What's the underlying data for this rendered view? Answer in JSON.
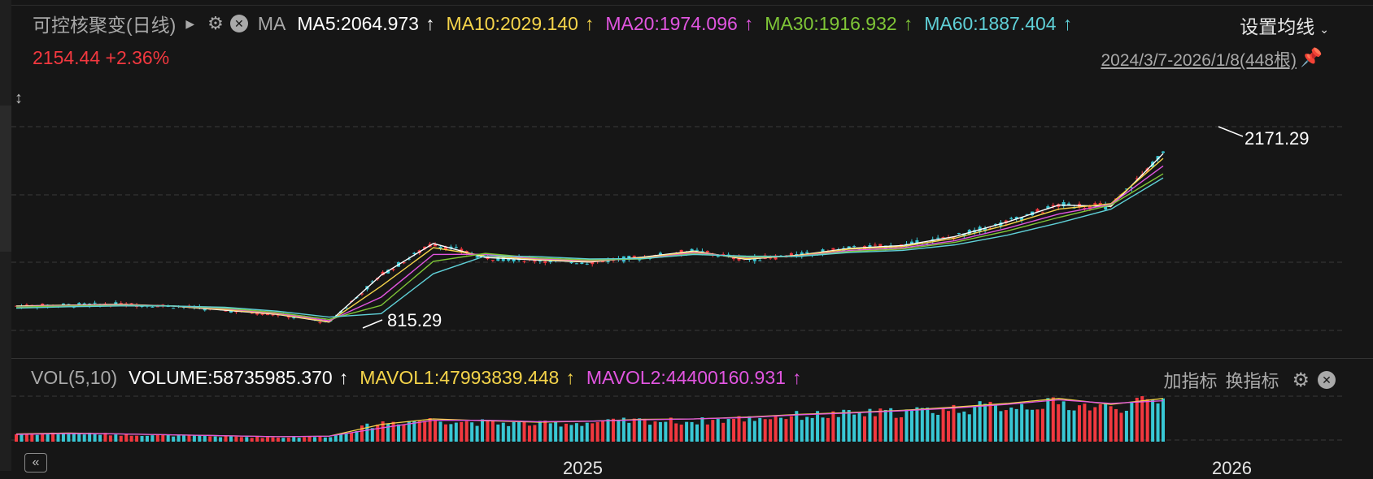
{
  "header": {
    "title": "可控核聚变(日线)",
    "ma_label": "MA",
    "ma_items": [
      {
        "text": "MA5:2064.973",
        "color": "#ffffff"
      },
      {
        "text": "MA10:2029.140",
        "color": "#f5d44a"
      },
      {
        "text": "MA20:1974.096",
        "color": "#e155e0"
      },
      {
        "text": "MA30:1916.932",
        "color": "#7fc637"
      },
      {
        "text": "MA60:1887.404",
        "color": "#5fd0d7"
      }
    ],
    "arrow": "↑",
    "settings_label": "设置均线",
    "settings_chevron": "⌄"
  },
  "price": {
    "current": "2154.44 +2.36%"
  },
  "range": {
    "text": "2024/3/7-2026/1/8(448根)"
  },
  "annotations": {
    "high": "2171.29",
    "low": "815.29"
  },
  "volume": {
    "name": "VOL(5,10)",
    "items": [
      {
        "text": "VOLUME:58735985.370",
        "color": "#ffffff"
      },
      {
        "text": "MAVOL1:47993839.448",
        "color": "#f5d44a"
      },
      {
        "text": "MAVOL2:44400160.931",
        "color": "#e155e0"
      }
    ],
    "add_indicator": "加指标",
    "switch_indicator": "换指标"
  },
  "xaxis": {
    "years": [
      "2025",
      "2026"
    ]
  },
  "icons": {
    "gear": "gear-icon",
    "close": "close-icon",
    "pin": "pin-icon",
    "resize": "resize-icon",
    "rewind": "rewind-icon"
  },
  "chart_data": {
    "type": "line",
    "colors": {
      "up": "#f2383f",
      "down": "#38c7d4"
    },
    "ylim": [
      760,
      2260
    ],
    "grid": true,
    "x": [
      "2024-03",
      "2024-04",
      "2024-05",
      "2024-06",
      "2024-07",
      "2024-08",
      "2024-09",
      "2024-10",
      "2024-11",
      "2024-12",
      "2025-01",
      "2025-02",
      "2025-03",
      "2025-04",
      "2025-05",
      "2025-06",
      "2025-07",
      "2025-08",
      "2025-09",
      "2025-10",
      "2025-11",
      "2025-12",
      "2026-01"
    ],
    "series": [
      {
        "color": "#ffffff",
        "values": [
          955,
          962,
          968,
          955,
          925,
          895,
          838,
          1180,
          1410,
          1308,
          1290,
          1275,
          1310,
          1355,
          1295,
          1325,
          1375,
          1395,
          1460,
          1565,
          1690,
          1680,
          2064
        ]
      },
      {
        "color": "#f5d44a",
        "values": [
          952,
          960,
          965,
          955,
          930,
          898,
          840,
          1100,
          1380,
          1320,
          1295,
          1280,
          1305,
          1350,
          1300,
          1322,
          1370,
          1388,
          1448,
          1545,
          1660,
          1700,
          2029
        ]
      },
      {
        "color": "#e155e0",
        "values": [
          950,
          958,
          963,
          956,
          936,
          903,
          848,
          1020,
          1330,
          1332,
          1300,
          1285,
          1300,
          1342,
          1308,
          1318,
          1360,
          1378,
          1430,
          1520,
          1625,
          1695,
          1974
        ]
      },
      {
        "color": "#7fc637",
        "values": [
          948,
          955,
          960,
          956,
          940,
          908,
          858,
          960,
          1280,
          1338,
          1305,
          1290,
          1298,
          1335,
          1312,
          1316,
          1352,
          1370,
          1418,
          1500,
          1600,
          1690,
          1917
        ]
      },
      {
        "color": "#5fd0d7",
        "values": [
          940,
          950,
          956,
          955,
          946,
          918,
          875,
          900,
          1190,
          1320,
          1315,
          1298,
          1300,
          1330,
          1318,
          1316,
          1345,
          1360,
          1400,
          1470,
          1560,
          1660,
          1887
        ]
      }
    ],
    "volume": {
      "values": [
        0.18,
        0.2,
        0.17,
        0.15,
        0.12,
        0.1,
        0.12,
        0.45,
        0.52,
        0.45,
        0.42,
        0.45,
        0.5,
        0.48,
        0.55,
        0.62,
        0.65,
        0.7,
        0.78,
        0.85,
        0.9,
        0.8,
        1.0
      ],
      "mavol1": [
        0.17,
        0.19,
        0.17,
        0.15,
        0.13,
        0.11,
        0.12,
        0.38,
        0.5,
        0.46,
        0.43,
        0.45,
        0.49,
        0.5,
        0.54,
        0.6,
        0.64,
        0.69,
        0.76,
        0.84,
        0.95,
        0.82,
        0.95
      ],
      "mavol2": [
        0.16,
        0.18,
        0.17,
        0.15,
        0.13,
        0.11,
        0.12,
        0.3,
        0.47,
        0.47,
        0.44,
        0.45,
        0.48,
        0.5,
        0.53,
        0.59,
        0.63,
        0.68,
        0.74,
        0.82,
        0.92,
        0.84,
        0.9
      ]
    }
  }
}
